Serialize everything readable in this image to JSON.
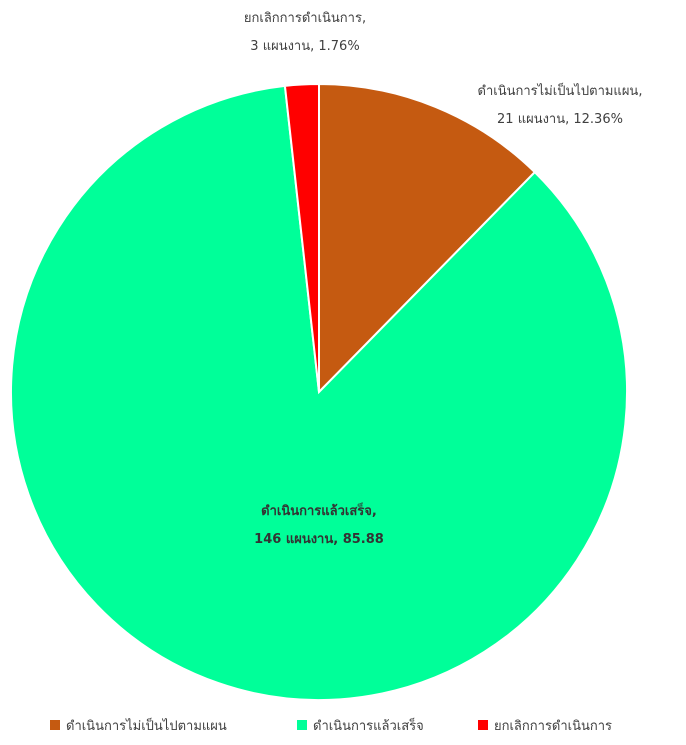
{
  "chart_data": {
    "type": "pie",
    "categories": [
      "ดำเนินการไม่เป็นไปตามแผน",
      "ดำเนินการแล้วเสร็จ",
      "ยกเลิกการดำเนินการ"
    ],
    "values": [
      21,
      146,
      3
    ],
    "percent_labels": [
      "12.36%",
      "85.88",
      "1.76%"
    ],
    "unit": "แผนงาน",
    "colors": [
      "#c55a11",
      "#00ff99",
      "#ff0000"
    ],
    "legend_position": "bottom"
  }
}
